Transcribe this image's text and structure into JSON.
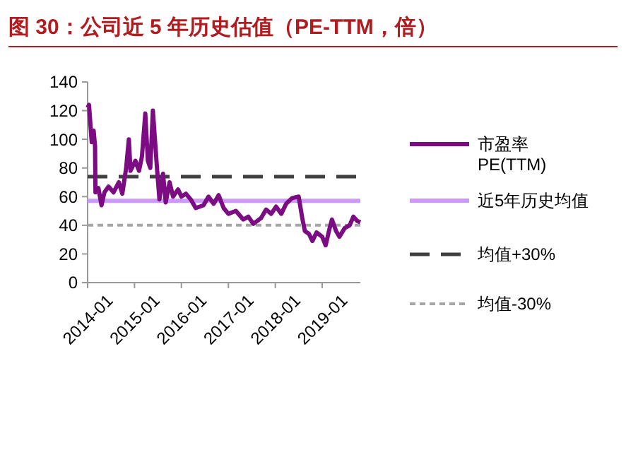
{
  "chart_data": {
    "type": "line",
    "title": "图 30：公司近 5 年历史估值（PE-TTM，倍）",
    "xlim": [
      "2014-01-01",
      "2019-10-25"
    ],
    "xticks": [
      "2014-01",
      "2015-01",
      "2016-01",
      "2017-01",
      "2018-01",
      "2019-01"
    ],
    "ylim": [
      0,
      140
    ],
    "yticks": [
      0,
      20,
      40,
      60,
      80,
      100,
      120,
      140
    ],
    "grid": false,
    "legend": "right",
    "series": [
      {
        "name": "市盈率\nPE(TTM)",
        "color": "#7b0c82",
        "line_style": "solid",
        "x": [
          "2014-01-01",
          "2014-01-12",
          "2014-02-02",
          "2014-02-17",
          "2014-02-28",
          "2014-03-03",
          "2014-03-26",
          "2014-04-19",
          "2014-05-12",
          "2014-06-13",
          "2014-07-22",
          "2014-09-01",
          "2014-09-28",
          "2014-10-28",
          "2014-11-18",
          "2014-12-01",
          "2015-01-08",
          "2015-02-05",
          "2015-02-28",
          "2015-03-26",
          "2015-04-15",
          "2015-05-04",
          "2015-05-24",
          "2015-06-13",
          "2015-06-25",
          "2015-07-14",
          "2015-08-11",
          "2015-09-01",
          "2015-10-01",
          "2015-10-28",
          "2015-12-06",
          "2016-01-01",
          "2016-02-05",
          "2016-03-14",
          "2016-04-22",
          "2016-06-21",
          "2016-07-30",
          "2016-09-08",
          "2016-10-17",
          "2016-11-25",
          "2017-01-01",
          "2017-02-28",
          "2017-04-27",
          "2017-06-05",
          "2017-07-14",
          "2017-09-12",
          "2017-10-21",
          "2017-11-30",
          "2018-01-07",
          "2018-02-17",
          "2018-03-26",
          "2018-05-12",
          "2018-07-02",
          "2018-07-30",
          "2018-08-19",
          "2018-09-20",
          "2018-10-17",
          "2018-11-18",
          "2019-01-01",
          "2019-01-28",
          "2019-02-28",
          "2019-03-18",
          "2019-04-19",
          "2019-05-15",
          "2019-06-25",
          "2019-08-03",
          "2019-09-01",
          "2019-10-01",
          "2019-10-25"
        ],
        "values": [
          122,
          124,
          98,
          106,
          95,
          63,
          66,
          54,
          63,
          67,
          63,
          70,
          62,
          80,
          100,
          78,
          85,
          78,
          88,
          118,
          85,
          80,
          120,
          95,
          80,
          58,
          76,
          56,
          70,
          60,
          65,
          60,
          62,
          58,
          52,
          54,
          60,
          55,
          61,
          52,
          48,
          50,
          44,
          46,
          41,
          45,
          51,
          48,
          53,
          48,
          55,
          59,
          60,
          45,
          36,
          34,
          29,
          35,
          32,
          26,
          38,
          44,
          36,
          32,
          38,
          40,
          46,
          43,
          42
        ]
      },
      {
        "name": "近5年历史均值",
        "color": "#cc99ff",
        "line_style": "solid",
        "x": [
          "2014-01-01",
          "2019-10-25"
        ],
        "values": [
          57,
          57
        ]
      },
      {
        "name": "均值+30%",
        "color": "#404040",
        "line_style": "dashed",
        "x": [
          "2014-01-01",
          "2019-10-25"
        ],
        "values": [
          74,
          74
        ]
      },
      {
        "name": "均值-30%",
        "color": "#a6a6a6",
        "line_style": "dotted",
        "x": [
          "2014-01-01",
          "2019-10-25"
        ],
        "values": [
          40,
          40
        ]
      }
    ]
  }
}
